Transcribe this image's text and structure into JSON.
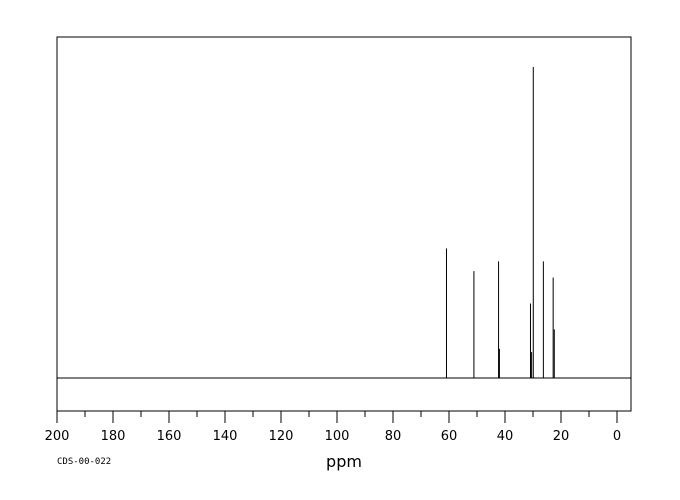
{
  "chart_data": {
    "type": "line",
    "title": "",
    "xlabel": "ppm",
    "ylabel": "",
    "xlim": [
      200,
      -5
    ],
    "x_reversed": true,
    "ylim": [
      0,
      1.1
    ],
    "grid": false,
    "legend": "none",
    "x_tick_labels": [
      "200",
      "180",
      "160",
      "140",
      "120",
      "100",
      "80",
      "60",
      "40",
      "20",
      "0"
    ],
    "x_tick_values": [
      200,
      180,
      160,
      140,
      120,
      100,
      80,
      60,
      40,
      20,
      0
    ],
    "x_minor_tick_values": [
      190,
      170,
      150,
      130,
      110,
      90,
      70,
      50,
      30,
      10
    ],
    "series": [
      {
        "peaks": [
          {
            "ppm": 60.9,
            "intensity": 0.4
          },
          {
            "ppm": 51.1,
            "intensity": 0.33
          },
          {
            "ppm": 42.3,
            "intensity": 0.36
          },
          {
            "ppm": 42.0,
            "intensity": 0.09
          },
          {
            "ppm": 30.9,
            "intensity": 0.23
          },
          {
            "ppm": 30.5,
            "intensity": 0.08
          },
          {
            "ppm": 29.9,
            "intensity": 0.96
          },
          {
            "ppm": 26.3,
            "intensity": 0.36
          },
          {
            "ppm": 22.8,
            "intensity": 0.31
          },
          {
            "ppm": 22.4,
            "intensity": 0.15
          }
        ]
      }
    ],
    "code_label": "CDS-00-022",
    "color": "#000000"
  }
}
